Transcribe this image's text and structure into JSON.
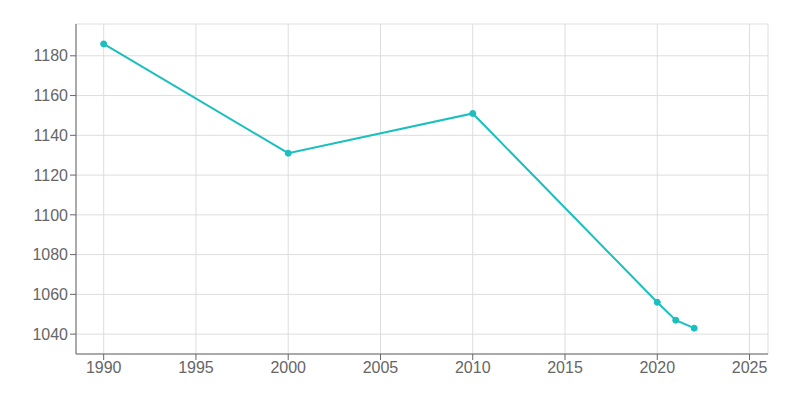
{
  "chart_data": {
    "type": "line",
    "x": [
      1990,
      2000,
      2010,
      2020,
      2021,
      2022
    ],
    "values": [
      1186,
      1131,
      1151,
      1056,
      1047,
      1043
    ],
    "color": "#1abfbf",
    "marker": "o",
    "xlim": [
      1988.5,
      2026
    ],
    "ylim": [
      1030,
      1196
    ],
    "xticks": [
      1990,
      1995,
      2000,
      2005,
      2010,
      2015,
      2020,
      2025
    ],
    "yticks": [
      1040,
      1060,
      1080,
      1100,
      1120,
      1140,
      1160,
      1180
    ],
    "grid": true
  }
}
